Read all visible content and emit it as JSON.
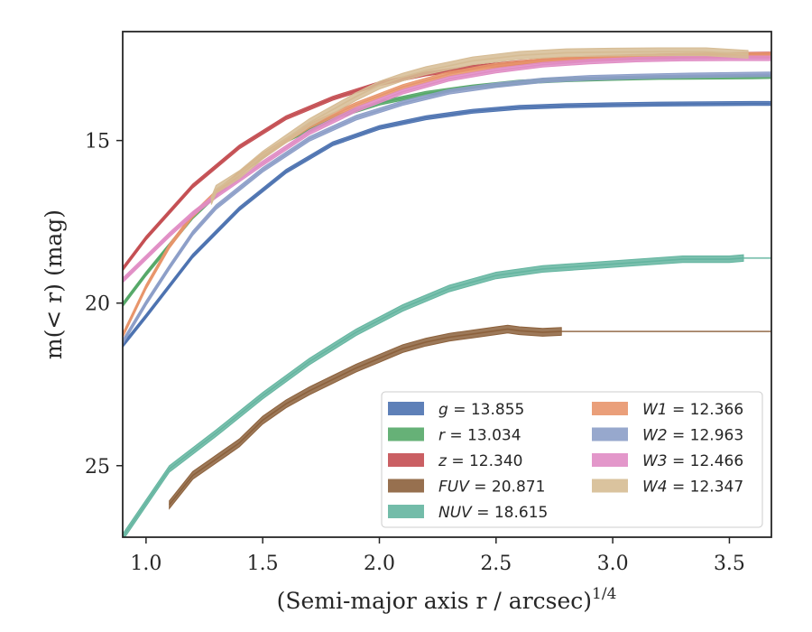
{
  "chart_data": {
    "type": "line",
    "title": "",
    "xlabel": "(Semi-major axis r / arcsec)",
    "xlabel_exponent": "1/4",
    "ylabel": "m(< r) (mag)",
    "xlim": [
      0.9,
      3.68
    ],
    "ylim": [
      27.2,
      11.65
    ],
    "y_inverted": true,
    "grid": false,
    "legend_position": "lower-right",
    "x_ticks": [
      {
        "value": 1.0,
        "label": "1.0"
      },
      {
        "value": 1.5,
        "label": "1.5"
      },
      {
        "value": 2.0,
        "label": "2.0"
      },
      {
        "value": 2.5,
        "label": "2.5"
      },
      {
        "value": 3.0,
        "label": "3.0"
      },
      {
        "value": 3.5,
        "label": "3.5"
      }
    ],
    "y_ticks": [
      {
        "value": 15,
        "label": "15"
      },
      {
        "value": 20,
        "label": "20"
      },
      {
        "value": 25,
        "label": "25"
      }
    ],
    "series": [
      {
        "name": "g = 13.855",
        "legend_var": "g",
        "legend_val": "13.855",
        "color": "#4c72b0",
        "width": 0.06,
        "extrapolated": false,
        "x": [
          0.9,
          1.0,
          1.2,
          1.4,
          1.6,
          1.8,
          2.0,
          2.2,
          2.4,
          2.6,
          2.8,
          3.0,
          3.2,
          3.4,
          3.6,
          3.68
        ],
        "y": [
          21.3,
          20.4,
          18.55,
          17.1,
          15.95,
          15.1,
          14.6,
          14.3,
          14.1,
          13.98,
          13.93,
          13.9,
          13.88,
          13.87,
          13.86,
          13.86
        ]
      },
      {
        "name": "r = 13.034",
        "legend_var": "r",
        "legend_val": "13.034",
        "color": "#55a868",
        "width": 0.06,
        "extrapolated": false,
        "x": [
          0.9,
          1.0,
          1.2,
          1.4,
          1.6,
          1.8,
          2.0,
          2.2,
          2.4,
          2.6,
          2.8,
          3.0,
          3.2,
          3.4,
          3.6,
          3.68
        ],
        "y": [
          20.05,
          19.1,
          17.35,
          16.0,
          15.0,
          14.3,
          13.85,
          13.55,
          13.35,
          13.2,
          13.13,
          13.09,
          13.06,
          13.05,
          13.04,
          13.03
        ]
      },
      {
        "name": "z = 12.340",
        "legend_var": "z",
        "legend_val": "12.340",
        "color": "#c44e52",
        "width": 0.06,
        "extrapolated": false,
        "x": [
          0.9,
          1.0,
          1.2,
          1.4,
          1.6,
          1.8,
          2.0,
          2.2,
          2.4,
          2.6,
          2.8,
          3.0,
          3.2,
          3.4,
          3.6,
          3.68
        ],
        "y": [
          18.95,
          18.0,
          16.4,
          15.2,
          14.3,
          13.7,
          13.25,
          12.95,
          12.75,
          12.6,
          12.5,
          12.45,
          12.4,
          12.37,
          12.35,
          12.34
        ]
      },
      {
        "name": "FUV = 20.871",
        "legend_var": "FUV",
        "legend_val": "20.871",
        "color": "#8c613c",
        "width": 0.12,
        "extrapolated": true,
        "extrapolated_from": 2.78,
        "x": [
          1.1,
          1.2,
          1.3,
          1.4,
          1.5,
          1.6,
          1.7,
          1.8,
          1.9,
          2.0,
          2.1,
          2.2,
          2.3,
          2.4,
          2.5,
          2.55,
          2.6,
          2.7,
          2.78,
          3.0,
          3.3,
          3.68
        ],
        "y": [
          26.2,
          25.3,
          24.8,
          24.3,
          23.6,
          23.1,
          22.7,
          22.35,
          22.0,
          21.7,
          21.4,
          21.2,
          21.05,
          20.95,
          20.85,
          20.8,
          20.85,
          20.9,
          20.871,
          20.871,
          20.871,
          20.871
        ]
      },
      {
        "name": "NUV = 18.615",
        "legend_var": "NUV",
        "legend_val": "18.615",
        "color": "#64b5a0",
        "width": 0.1,
        "extrapolated": true,
        "extrapolated_from": 3.56,
        "x": [
          0.9,
          1.1,
          1.3,
          1.5,
          1.7,
          1.9,
          2.1,
          2.3,
          2.5,
          2.7,
          2.9,
          3.1,
          3.3,
          3.5,
          3.56,
          3.68
        ],
        "y": [
          27.2,
          25.1,
          24.0,
          22.85,
          21.8,
          20.9,
          20.15,
          19.55,
          19.15,
          18.95,
          18.85,
          18.75,
          18.65,
          18.65,
          18.615,
          18.615
        ]
      },
      {
        "name": "W1 = 12.366",
        "legend_var": "W1",
        "legend_val": "12.366",
        "color": "#e8956b",
        "width": 0.07,
        "extrapolated": false,
        "x": [
          0.9,
          1.0,
          1.1,
          1.2,
          1.3,
          1.5,
          1.7,
          1.9,
          2.1,
          2.3,
          2.5,
          2.7,
          2.9,
          3.1,
          3.3,
          3.5,
          3.68
        ],
        "y": [
          21.0,
          19.5,
          18.25,
          17.3,
          16.6,
          15.45,
          14.55,
          13.9,
          13.35,
          12.95,
          12.7,
          12.55,
          12.47,
          12.42,
          12.4,
          12.38,
          12.37
        ]
      },
      {
        "name": "W2 = 12.963",
        "legend_var": "W2",
        "legend_val": "12.963",
        "color": "#8c9ec8",
        "width": 0.07,
        "extrapolated": false,
        "x": [
          0.9,
          1.0,
          1.1,
          1.2,
          1.3,
          1.5,
          1.7,
          1.9,
          2.1,
          2.3,
          2.5,
          2.7,
          2.9,
          3.1,
          3.3,
          3.5,
          3.68
        ],
        "y": [
          21.2,
          20.0,
          18.9,
          17.85,
          17.05,
          15.9,
          14.95,
          14.3,
          13.85,
          13.5,
          13.3,
          13.15,
          13.07,
          13.03,
          13.0,
          12.98,
          12.96
        ]
      },
      {
        "name": "W3 = 12.466",
        "legend_var": "W3",
        "legend_val": "12.466",
        "color": "#e08cc4",
        "width": 0.07,
        "extrapolated": false,
        "x": [
          0.9,
          1.0,
          1.1,
          1.2,
          1.3,
          1.5,
          1.7,
          1.9,
          2.1,
          2.3,
          2.5,
          2.7,
          2.9,
          3.1,
          3.3,
          3.5,
          3.68
        ],
        "y": [
          19.3,
          18.6,
          17.9,
          17.25,
          16.7,
          15.7,
          14.75,
          14.05,
          13.5,
          13.1,
          12.85,
          12.67,
          12.57,
          12.51,
          12.48,
          12.47,
          12.47
        ]
      },
      {
        "name": "W4 = 12.347",
        "legend_var": "W4",
        "legend_val": "12.347",
        "color": "#d6bc94",
        "width": 0.12,
        "extrapolated": false,
        "x": [
          1.28,
          1.3,
          1.4,
          1.5,
          1.6,
          1.7,
          1.8,
          1.9,
          2.0,
          2.1,
          2.2,
          2.4,
          2.6,
          2.8,
          3.0,
          3.2,
          3.4,
          3.58
        ],
        "y": [
          16.85,
          16.5,
          16.05,
          15.45,
          14.95,
          14.45,
          14.05,
          13.65,
          13.3,
          13.05,
          12.85,
          12.55,
          12.38,
          12.3,
          12.28,
          12.27,
          12.27,
          12.35
        ]
      }
    ]
  }
}
